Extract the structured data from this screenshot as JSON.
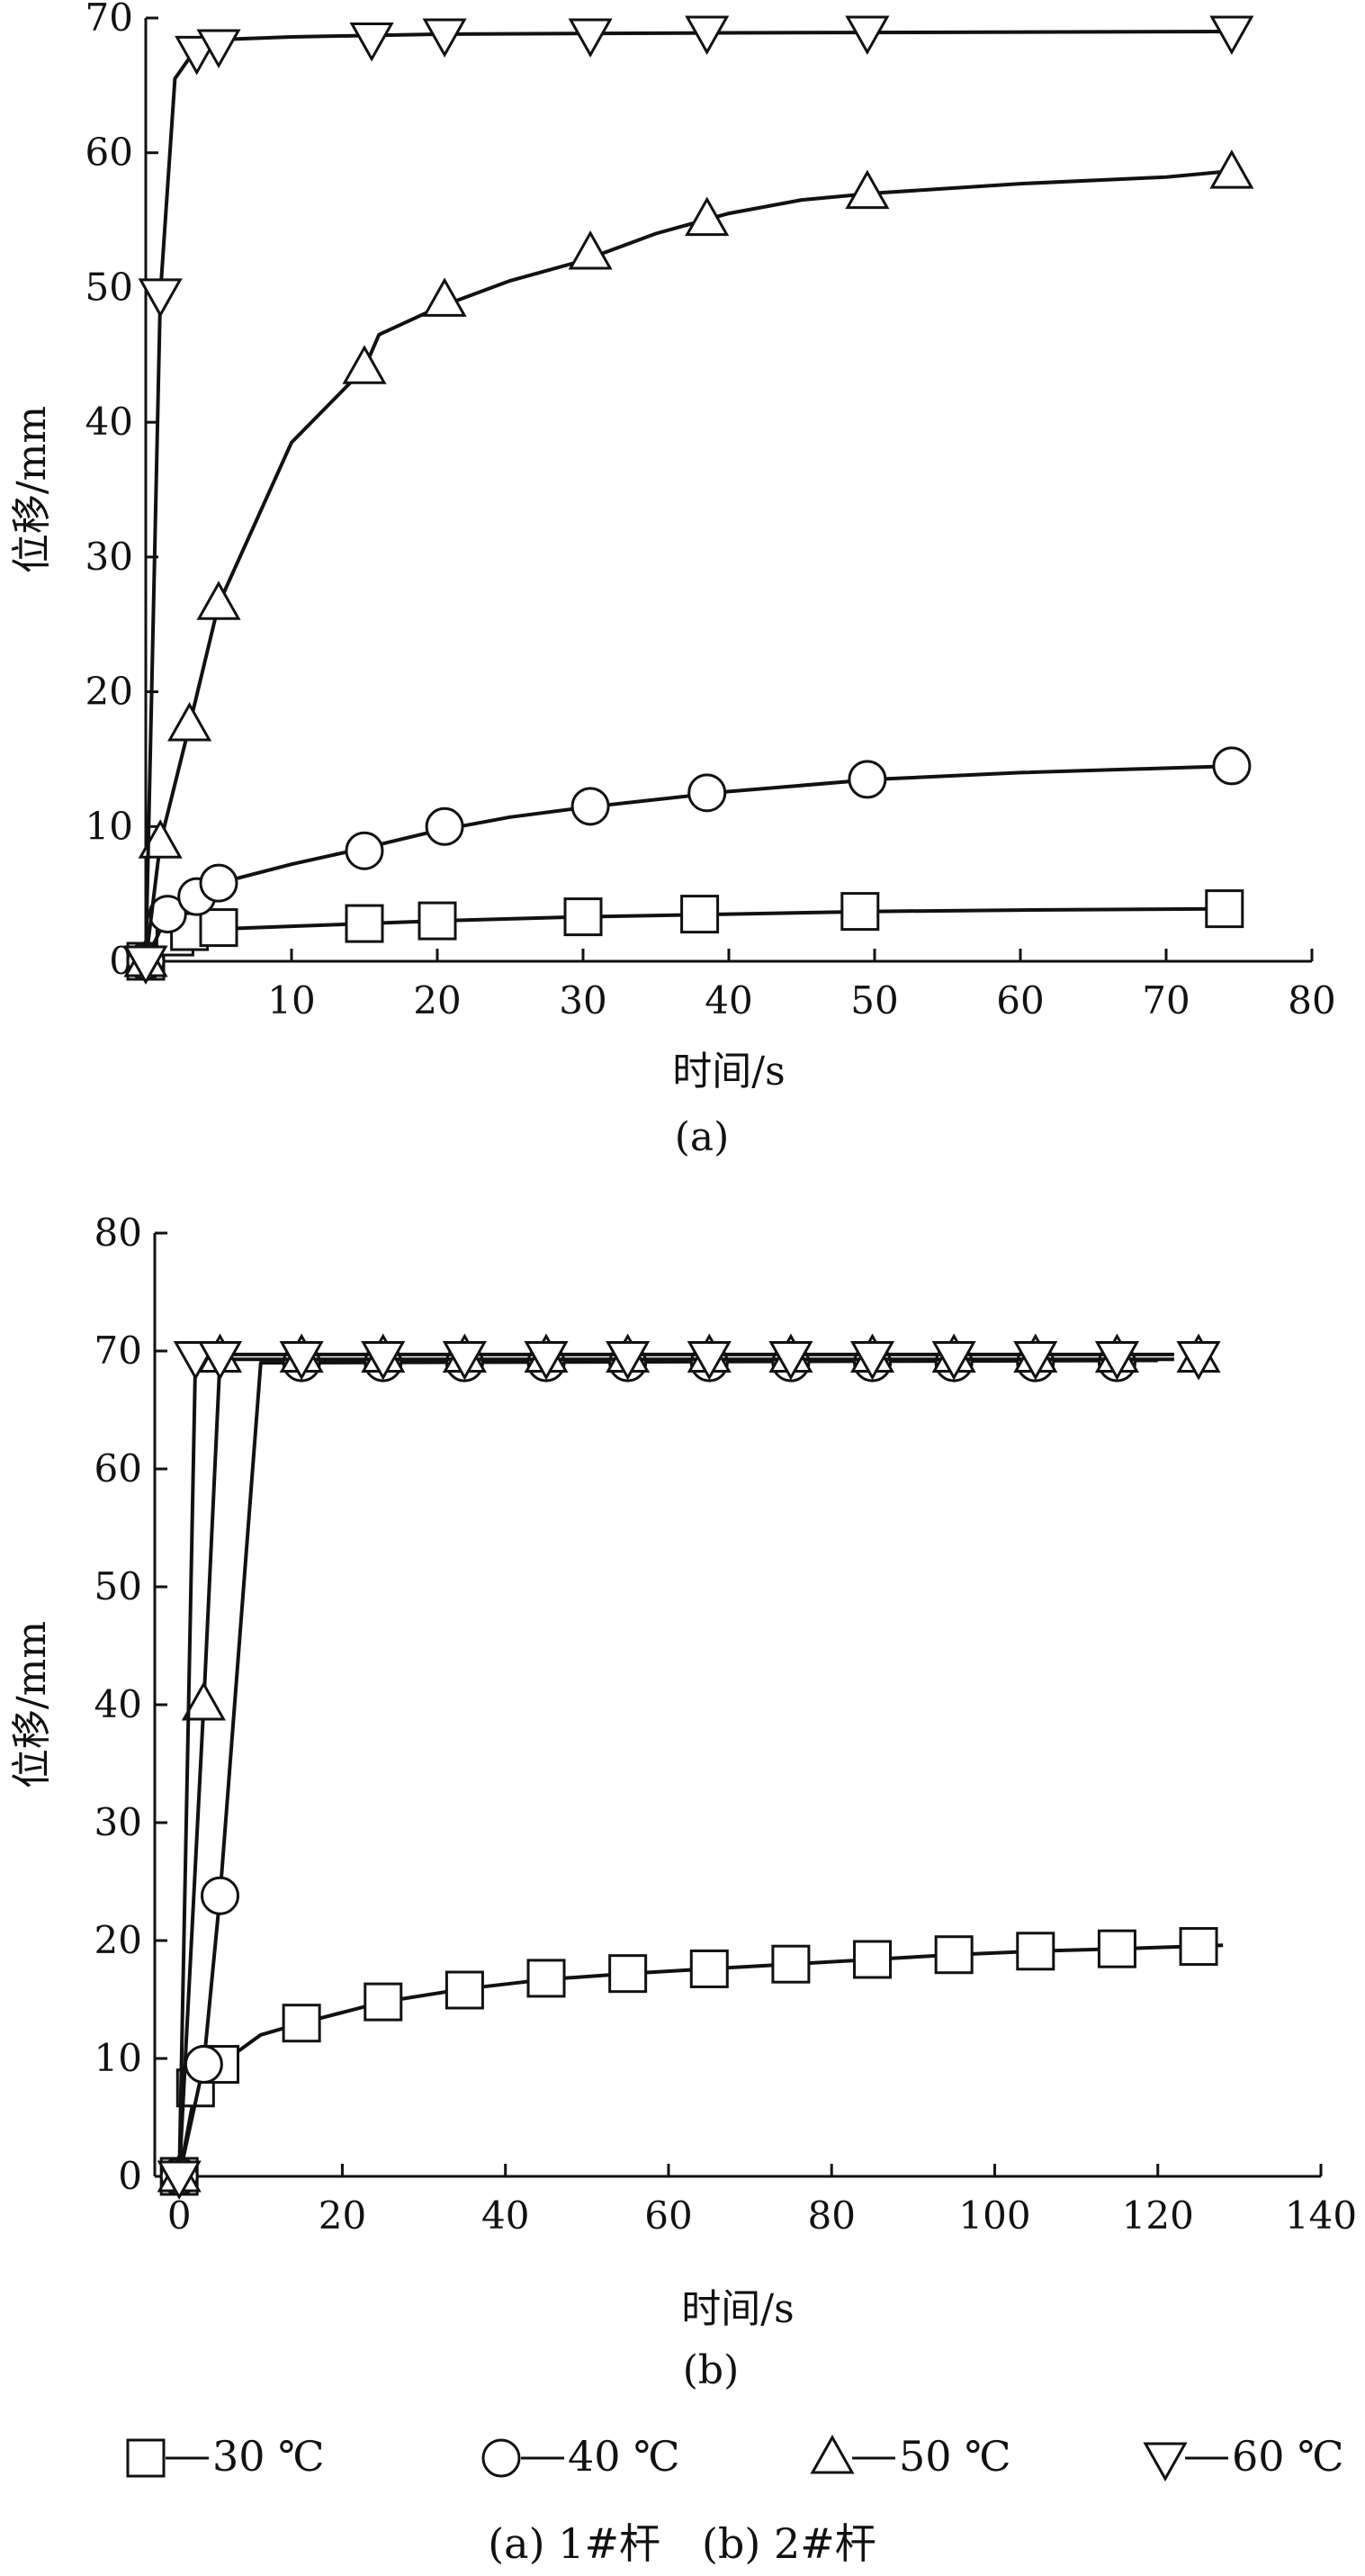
{
  "figure": {
    "legend": [
      {
        "series": "30 ℃",
        "marker": "square"
      },
      {
        "series": "40 ℃",
        "marker": "circle"
      },
      {
        "series": "50 ℃",
        "marker": "triangle-up"
      },
      {
        "series": "60 ℃",
        "marker": "triangle-down"
      }
    ],
    "caption": "(a) 1#杆　(b) 2#杆"
  },
  "chart_data": [
    {
      "type": "line",
      "panel_label": "(a)",
      "xlabel": "时间/s",
      "ylabel": "位移/mm",
      "xlim": [
        0,
        80
      ],
      "ylim": [
        0,
        70
      ],
      "xticks": [
        10,
        20,
        30,
        40,
        50,
        60,
        70,
        80
      ],
      "yticks": [
        0,
        10,
        20,
        30,
        40,
        50,
        60,
        70
      ],
      "grid": false,
      "series": [
        {
          "name": "30 ℃",
          "marker": "square",
          "points": [
            [
              0,
              0
            ],
            [
              2,
              1.8
            ],
            [
              3,
              2.2
            ],
            [
              5,
              2.5
            ],
            [
              15,
              2.8
            ],
            [
              20,
              3.0
            ],
            [
              30,
              3.3
            ],
            [
              38,
              3.5
            ],
            [
              49,
              3.7
            ],
            [
              74,
              3.9
            ]
          ],
          "curve": [
            [
              0,
              0
            ],
            [
              2,
              1.8
            ],
            [
              5,
              2.4
            ],
            [
              10,
              2.6
            ],
            [
              15,
              2.8
            ],
            [
              20,
              3.0
            ],
            [
              30,
              3.3
            ],
            [
              40,
              3.5
            ],
            [
              50,
              3.7
            ],
            [
              60,
              3.8
            ],
            [
              75,
              3.9
            ]
          ]
        },
        {
          "name": "40 ℃",
          "marker": "circle",
          "points": [
            [
              0,
              0
            ],
            [
              1.5,
              3.5
            ],
            [
              3.5,
              4.8
            ],
            [
              5,
              5.8
            ],
            [
              15,
              8.2
            ],
            [
              20.5,
              10.0
            ],
            [
              30.5,
              11.5
            ],
            [
              38.5,
              12.5
            ],
            [
              49.5,
              13.5
            ],
            [
              74.5,
              14.5
            ]
          ],
          "curve": [
            [
              0,
              0
            ],
            [
              1.5,
              3.5
            ],
            [
              3.5,
              4.8
            ],
            [
              5,
              5.8
            ],
            [
              10,
              7.2
            ],
            [
              15,
              8.4
            ],
            [
              20,
              9.7
            ],
            [
              25,
              10.7
            ],
            [
              30,
              11.4
            ],
            [
              40,
              12.6
            ],
            [
              50,
              13.5
            ],
            [
              60,
              14.0
            ],
            [
              75,
              14.5
            ]
          ]
        },
        {
          "name": "50 ℃",
          "marker": "triangle-up",
          "points": [
            [
              0,
              0
            ],
            [
              1,
              8.8
            ],
            [
              3,
              17.5
            ],
            [
              5,
              26.5
            ],
            [
              15,
              44
            ],
            [
              20.5,
              49
            ],
            [
              30.5,
              52.5
            ],
            [
              38.5,
              55
            ],
            [
              49.5,
              57
            ],
            [
              74.5,
              58.5
            ]
          ],
          "curve": [
            [
              0,
              0
            ],
            [
              1,
              8.8
            ],
            [
              3,
              17.5
            ],
            [
              5,
              26.5
            ],
            [
              10,
              38.5
            ],
            [
              15,
              44
            ],
            [
              16,
              46.5
            ],
            [
              20,
              48.5
            ],
            [
              25,
              50.5
            ],
            [
              30,
              52
            ],
            [
              35,
              54
            ],
            [
              40,
              55.5
            ],
            [
              45,
              56.5
            ],
            [
              50,
              57
            ],
            [
              60,
              57.7
            ],
            [
              70,
              58.2
            ],
            [
              75,
              58.7
            ]
          ]
        },
        {
          "name": "60 ℃",
          "marker": "triangle-down",
          "points": [
            [
              0,
              0
            ],
            [
              1,
              49.5
            ],
            [
              3.5,
              67.5
            ],
            [
              5,
              68
            ],
            [
              15.5,
              68.5
            ],
            [
              20.5,
              68.8
            ],
            [
              30.5,
              68.8
            ],
            [
              38.5,
              69
            ],
            [
              49.5,
              69
            ],
            [
              74.5,
              69
            ]
          ],
          "curve": [
            [
              0,
              0
            ],
            [
              1,
              49.5
            ],
            [
              2,
              65.5
            ],
            [
              3.5,
              67.8
            ],
            [
              5,
              68.4
            ],
            [
              10,
              68.6
            ],
            [
              20,
              68.8
            ],
            [
              40,
              68.9
            ],
            [
              75,
              69
            ]
          ]
        }
      ]
    },
    {
      "type": "line",
      "panel_label": "(b)",
      "xlabel": "时间/s",
      "ylabel": "位移/mm",
      "xlim": [
        -3,
        140
      ],
      "ylim": [
        0,
        80
      ],
      "xticks": [
        0,
        20,
        40,
        60,
        80,
        100,
        120,
        140
      ],
      "yticks": [
        0,
        10,
        20,
        30,
        40,
        50,
        60,
        70,
        80
      ],
      "grid": false,
      "series": [
        {
          "name": "30 ℃",
          "marker": "square",
          "points": [
            [
              0,
              0
            ],
            [
              2,
              7.5
            ],
            [
              5,
              9.5
            ],
            [
              15,
              13
            ],
            [
              25,
              14.8
            ],
            [
              35,
              15.8
            ],
            [
              45,
              16.8
            ],
            [
              55,
              17.2
            ],
            [
              65,
              17.6
            ],
            [
              75,
              18
            ],
            [
              85,
              18.4
            ],
            [
              95,
              18.8
            ],
            [
              105,
              19.1
            ],
            [
              115,
              19.3
            ],
            [
              125,
              19.5
            ]
          ],
          "curve": [
            [
              0,
              0
            ],
            [
              2,
              7.5
            ],
            [
              5,
              9.5
            ],
            [
              10,
              12
            ],
            [
              15,
              13
            ],
            [
              25,
              14.8
            ],
            [
              35,
              15.9
            ],
            [
              45,
              16.7
            ],
            [
              55,
              17.2
            ],
            [
              65,
              17.6
            ],
            [
              75,
              18
            ],
            [
              85,
              18.4
            ],
            [
              95,
              18.8
            ],
            [
              105,
              19.1
            ],
            [
              115,
              19.3
            ],
            [
              128,
              19.6
            ]
          ]
        },
        {
          "name": "40 ℃",
          "marker": "circle",
          "points": [
            [
              0,
              0
            ],
            [
              3,
              9.5
            ],
            [
              5,
              23.8
            ],
            [
              15,
              69
            ],
            [
              25,
              69
            ],
            [
              35,
              69
            ],
            [
              45,
              69
            ],
            [
              55,
              69
            ],
            [
              65,
              69
            ],
            [
              75,
              69
            ],
            [
              85,
              69
            ],
            [
              95,
              69
            ],
            [
              105,
              69
            ],
            [
              115,
              69
            ]
          ],
          "curve": [
            [
              0,
              0
            ],
            [
              3,
              9.5
            ],
            [
              5,
              23.8
            ],
            [
              10,
              69
            ],
            [
              120,
              69.2
            ]
          ]
        },
        {
          "name": "50 ℃",
          "marker": "triangle-up",
          "points": [
            [
              0,
              0
            ],
            [
              3,
              40
            ],
            [
              5,
              69.5
            ],
            [
              15,
              69.5
            ],
            [
              25,
              69.5
            ],
            [
              35,
              69.5
            ],
            [
              45,
              69.5
            ],
            [
              55,
              69.5
            ],
            [
              65,
              69.5
            ],
            [
              75,
              69.5
            ],
            [
              85,
              69.5
            ],
            [
              95,
              69.5
            ],
            [
              105,
              69.5
            ],
            [
              115,
              69.5
            ],
            [
              125,
              69.5
            ]
          ],
          "curve": [
            [
              0,
              0
            ],
            [
              3,
              40
            ],
            [
              5,
              69.3
            ],
            [
              122,
              69.3
            ]
          ]
        },
        {
          "name": "60 ℃",
          "marker": "triangle-down",
          "points": [
            [
              0,
              0
            ],
            [
              2,
              69.5
            ],
            [
              5,
              69.5
            ],
            [
              15,
              69.5
            ],
            [
              25,
              69.5
            ],
            [
              35,
              69.5
            ],
            [
              45,
              69.5
            ],
            [
              55,
              69.5
            ],
            [
              65,
              69.5
            ],
            [
              75,
              69.5
            ],
            [
              85,
              69.5
            ],
            [
              95,
              69.5
            ],
            [
              105,
              69.5
            ],
            [
              115,
              69.5
            ],
            [
              125,
              69.5
            ]
          ],
          "curve": [
            [
              0,
              0
            ],
            [
              2,
              69.7
            ],
            [
              122,
              69.7
            ]
          ]
        }
      ]
    }
  ]
}
